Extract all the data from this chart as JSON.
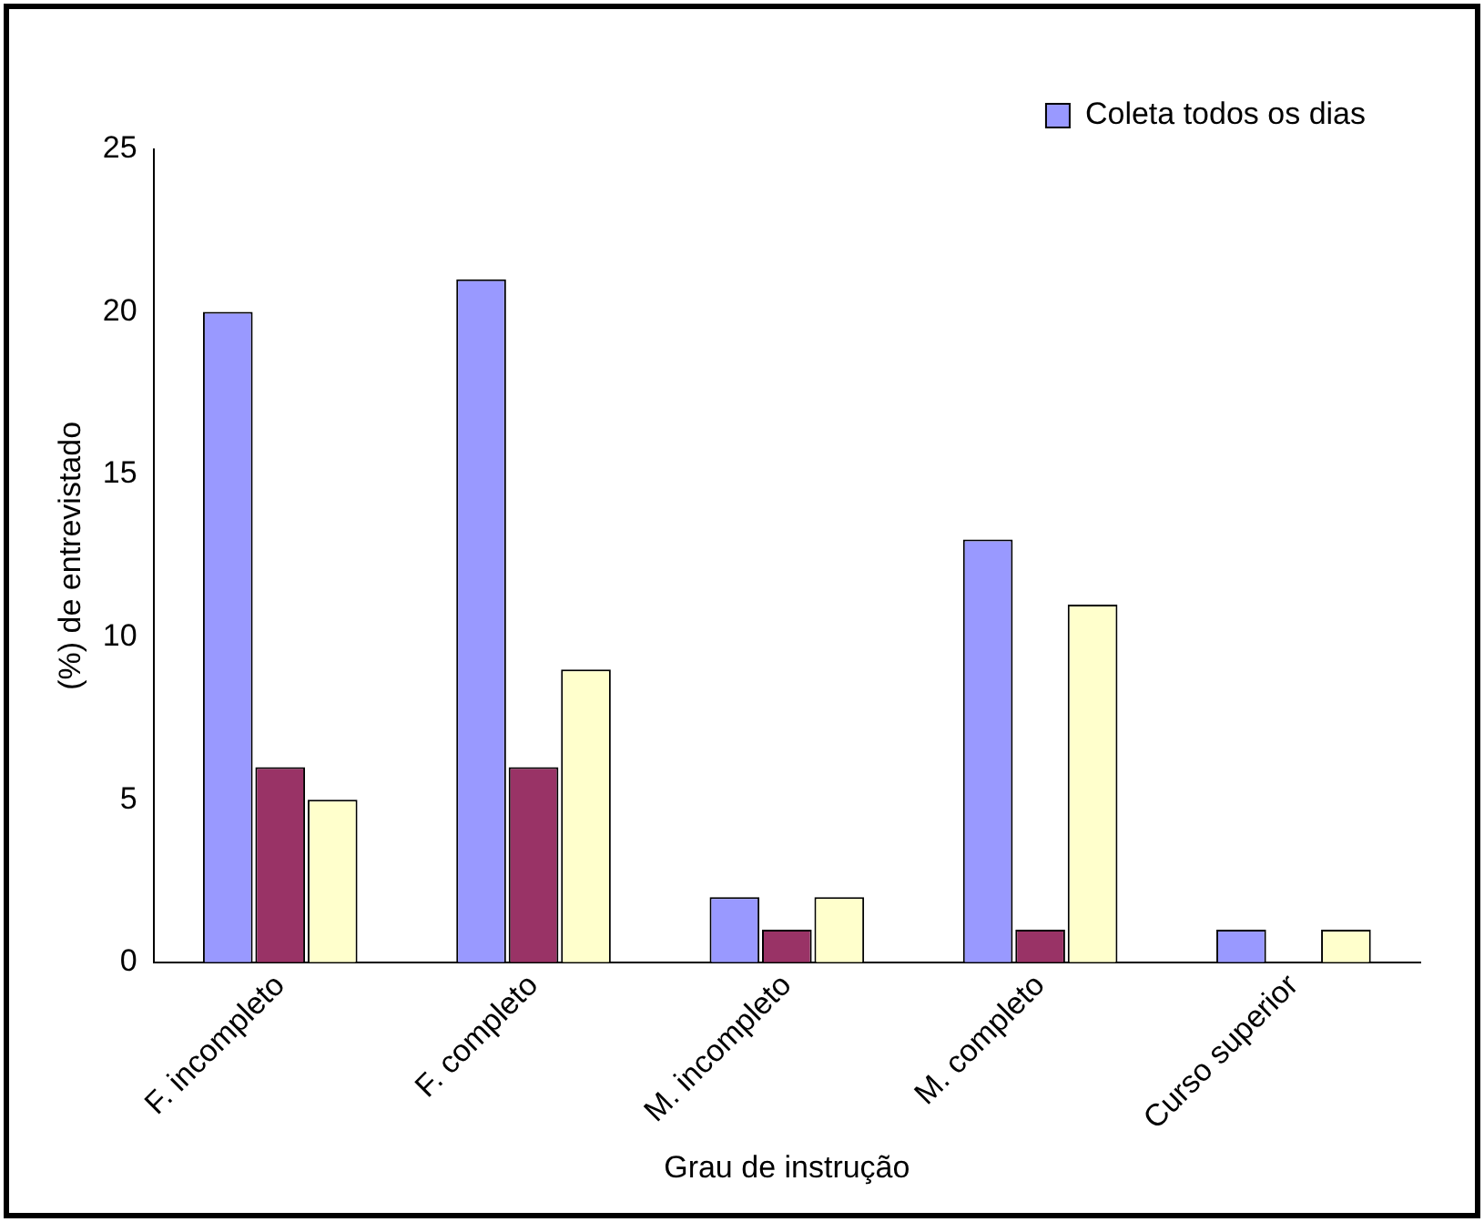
{
  "chart_data": {
    "type": "bar",
    "xlabel": "Grau de instrução",
    "ylabel": "(%) de entrevistado",
    "categories": [
      "F. incompleto",
      "F. completo",
      "M. incompleto",
      "M. completo",
      "Curso superior"
    ],
    "series": [
      {
        "name": "Coleta todos os dias",
        "color": "#9999ff",
        "values": [
          20,
          21,
          2,
          13,
          1
        ]
      },
      {
        "color": "#993366",
        "values": [
          6,
          6,
          1,
          1,
          null
        ]
      },
      {
        "color": "#ffffcc",
        "values": [
          5,
          9,
          2,
          11,
          1
        ]
      }
    ],
    "ylim": [
      0,
      25
    ],
    "yticks": [
      0,
      5,
      10,
      15,
      20,
      25
    ],
    "grid": false,
    "legend": "top right"
  }
}
